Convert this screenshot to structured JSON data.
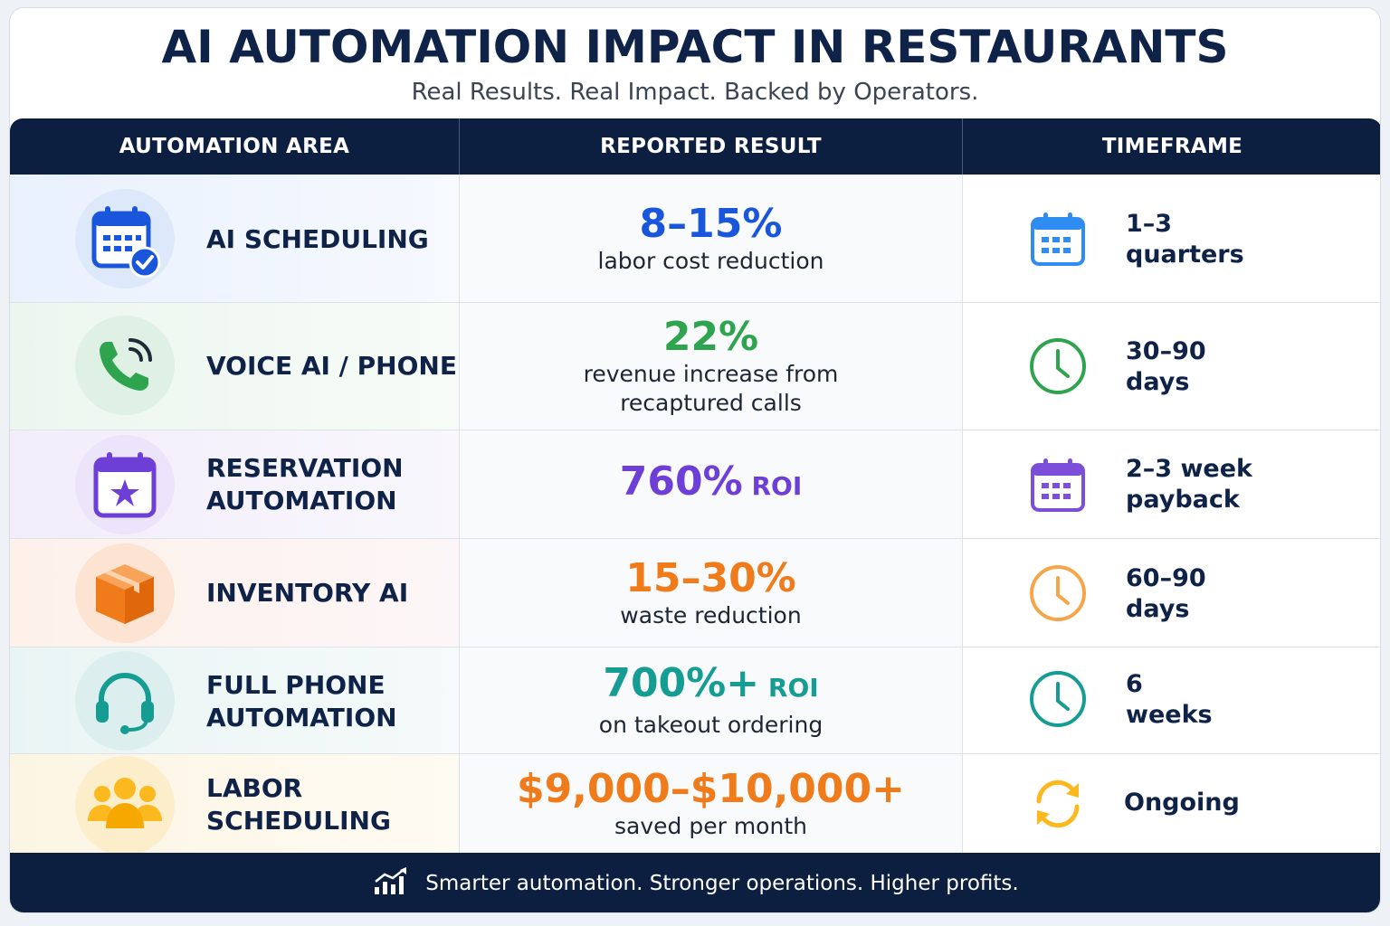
{
  "title": "AI AUTOMATION IMPACT IN RESTAURANTS",
  "subtitle": "Real Results. Real Impact. Backed by Operators.",
  "headers": [
    "AUTOMATION AREA",
    "REPORTED RESULT",
    "TIMEFRAME"
  ],
  "rows": [
    {
      "area": "AI SCHEDULING",
      "icon": "calendar-check-icon",
      "result_main": "8–15%",
      "result_suffix": "",
      "result_desc": "labor cost reduction",
      "result_color": "#1a56db",
      "timeframe": "1–3\nquarters",
      "timeframe_icon": "calendar-icon"
    },
    {
      "area": "VOICE AI / PHONE",
      "icon": "phone-signal-icon",
      "result_main": "22%",
      "result_suffix": "",
      "result_desc": "revenue increase from\nrecaptured calls",
      "result_color": "#2ea44f",
      "timeframe": "30–90\ndays",
      "timeframe_icon": "clock-icon"
    },
    {
      "area": "RESERVATION\nAUTOMATION",
      "icon": "calendar-star-icon",
      "result_main": "760%",
      "result_suffix": " ROI",
      "result_desc": "",
      "result_color": "#6d3fd6",
      "timeframe": "2–3 week\npayback",
      "timeframe_icon": "calendar-icon"
    },
    {
      "area": "INVENTORY AI",
      "icon": "box-icon",
      "result_main": "15–30%",
      "result_suffix": "",
      "result_desc": "waste reduction",
      "result_color": "#f07b1a",
      "timeframe": "60–90\ndays",
      "timeframe_icon": "clock-icon"
    },
    {
      "area": "FULL PHONE\nAUTOMATION",
      "icon": "headset-icon",
      "result_main": "700%+",
      "result_suffix": " ROI",
      "result_desc": "on takeout ordering",
      "result_color": "#159c93",
      "timeframe": "6\nweeks",
      "timeframe_icon": "clock-icon"
    },
    {
      "area": "LABOR\nSCHEDULING",
      "icon": "team-icon",
      "result_main": "$9,000–$10,000+",
      "result_suffix": "",
      "result_desc": "saved per month",
      "result_color": "#f07b1a",
      "timeframe": "Ongoing",
      "timeframe_icon": "refresh-icon"
    }
  ],
  "footer": "Smarter automation. Stronger operations. Higher profits.",
  "footer_icon": "growth-chart-icon"
}
